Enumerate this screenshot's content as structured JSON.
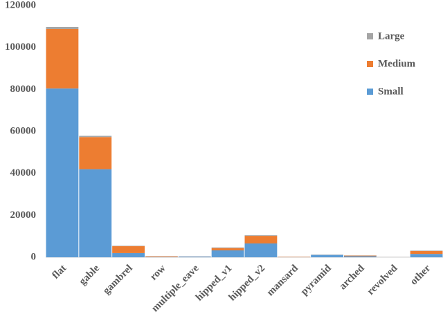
{
  "chart_data": {
    "type": "stacked_bar",
    "categories": [
      "flat",
      "gable",
      "gambrel",
      "row",
      "multiple_eave",
      "hipped_v1",
      "hipped_v2",
      "mansard",
      "pyramid",
      "arched",
      "revolved",
      "other"
    ],
    "series": [
      {
        "name": "Small",
        "color": "#5b9bd5",
        "values": [
          80500,
          42000,
          2000,
          200,
          400,
          3300,
          6600,
          100,
          1200,
          500,
          100,
          1600
        ]
      },
      {
        "name": "Medium",
        "color": "#ed7d31",
        "values": [
          28300,
          15300,
          3300,
          300,
          50,
          1100,
          3600,
          200,
          50,
          300,
          50,
          1400
        ]
      },
      {
        "name": "Large",
        "color": "#a5a5a5",
        "values": [
          1000,
          600,
          200,
          0,
          0,
          300,
          300,
          0,
          0,
          100,
          0,
          200
        ]
      }
    ],
    "ylim": [
      0,
      120000
    ],
    "yticks": [
      0,
      20000,
      40000,
      60000,
      80000,
      100000,
      120000
    ],
    "legend": "right"
  }
}
